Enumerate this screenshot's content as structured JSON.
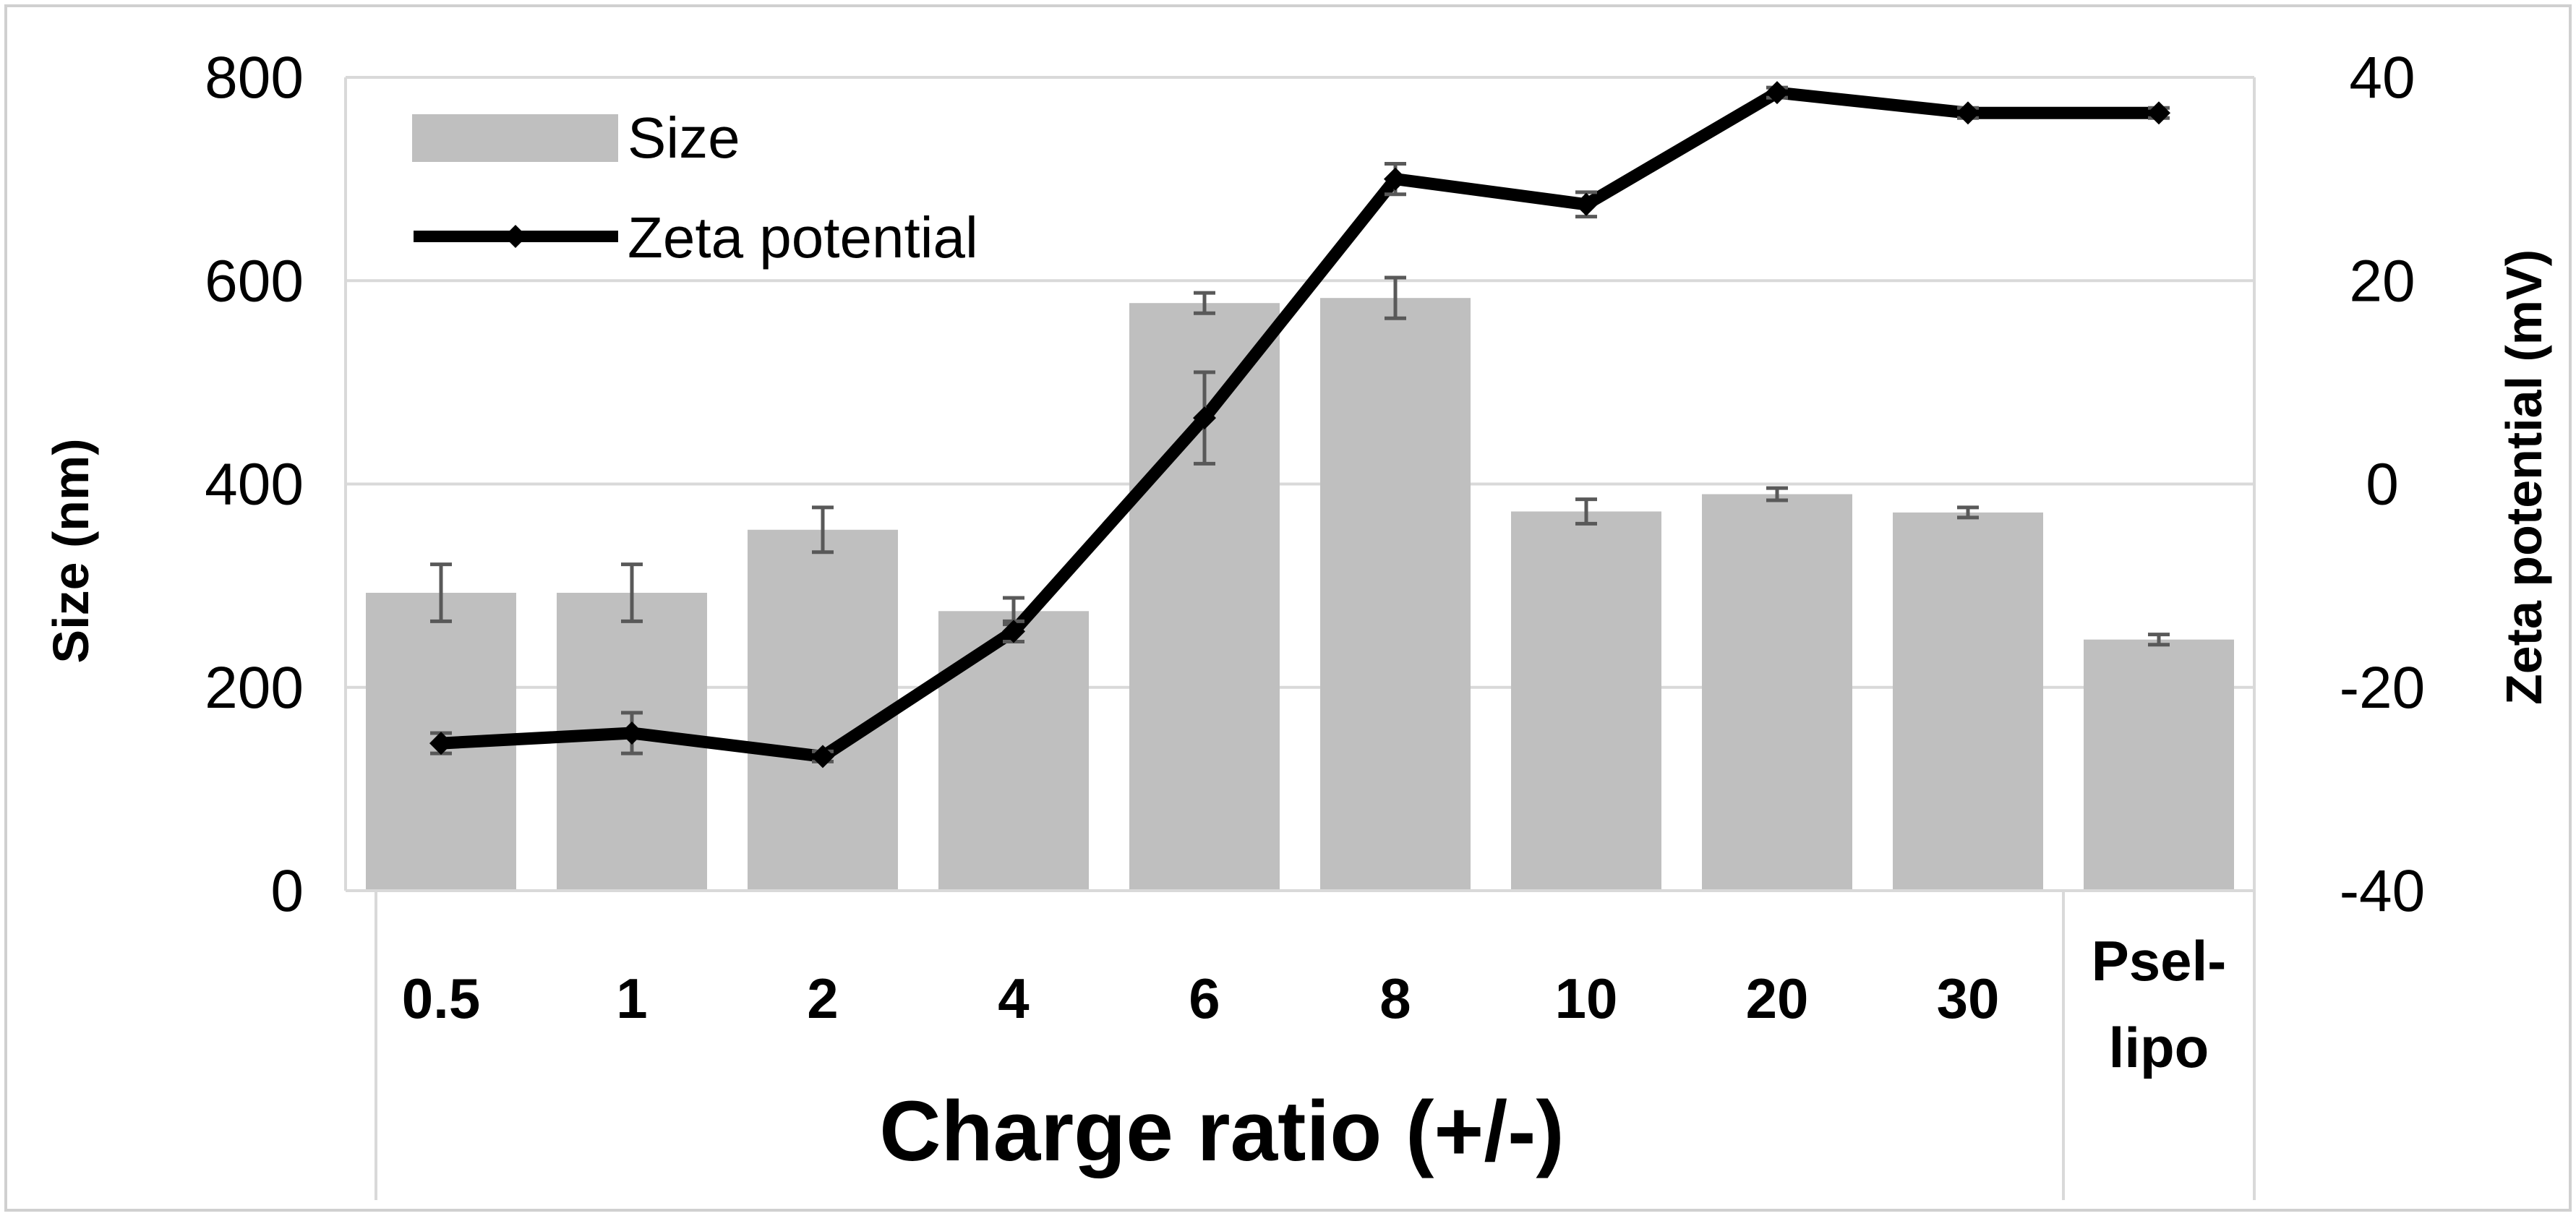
{
  "chart_data": {
    "type": "bar+line",
    "categories": [
      "0.5",
      "1",
      "2",
      "4",
      "6",
      "8",
      "10",
      "20",
      "30",
      "Psel-lipo"
    ],
    "category_label_lines": [
      [
        "0.5"
      ],
      [
        "1"
      ],
      [
        "2"
      ],
      [
        "4"
      ],
      [
        "6"
      ],
      [
        "8"
      ],
      [
        "10"
      ],
      [
        "20"
      ],
      [
        "30"
      ],
      [
        "Psel-",
        "lipo"
      ]
    ],
    "series": [
      {
        "name": "Size",
        "type": "bar",
        "axis": "left",
        "color": "#bfbfbf",
        "values": [
          293,
          293,
          355,
          275,
          578,
          583,
          373,
          390,
          372,
          247
        ],
        "errors": [
          28,
          28,
          22,
          13,
          10,
          20,
          12,
          6,
          5,
          5
        ]
      },
      {
        "name": "Zeta potential",
        "type": "line",
        "axis": "right",
        "color": "#000000",
        "values": [
          -25.5,
          -24.5,
          -26.8,
          -14.5,
          6.5,
          30,
          27.5,
          38.5,
          36.5,
          36.5
        ],
        "errors": [
          1,
          2,
          0.5,
          1,
          4.5,
          1.5,
          1.2,
          0.5,
          0.5,
          0.5
        ]
      }
    ],
    "ylabel": "Size (nm)",
    "ylabel_right": "Zeta potential (mV)",
    "xlabel": "Charge ratio (+/-)",
    "ylim": [
      0,
      800
    ],
    "yticks": [
      "0",
      "200",
      "400",
      "600",
      "800"
    ],
    "ylim_right": [
      -40,
      40
    ],
    "yticks_right": [
      "-40",
      "-20",
      "0",
      "20",
      "40"
    ],
    "grid": true,
    "legend_position": "top-left",
    "error_bar_color": "#595959"
  }
}
